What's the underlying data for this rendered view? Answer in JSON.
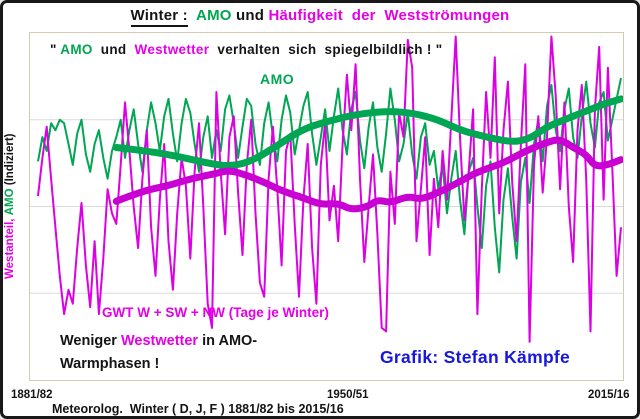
{
  "palette": {
    "black": "#141414",
    "green": "#00a651",
    "magenta": "#e500e5",
    "blue": "#1717dd",
    "line_green": "#00a651",
    "line_magenta_thin": "#dc00e4",
    "line_magenta_thick": "#c800d2",
    "grid": "#dadada",
    "box_border": "#d4cbb0"
  },
  "title": {
    "segments": [
      {
        "t": "Winter :",
        "c": "black",
        "u": true
      },
      {
        "t": "  ",
        "c": "black"
      },
      {
        "t": "AMO",
        "c": "green"
      },
      {
        "t": " und ",
        "c": "black"
      },
      {
        "t": "Häufigkeit  der  Westströmungen",
        "c": "magenta"
      }
    ]
  },
  "quote": {
    "segments": [
      {
        "t": "\" ",
        "c": "black"
      },
      {
        "t": "AMO",
        "c": "green"
      },
      {
        "t": "  und  ",
        "c": "black"
      },
      {
        "t": "Westwetter",
        "c": "magenta"
      },
      {
        "t": "  verhalten  sich  spiegelbildlich ! \"",
        "c": "black"
      }
    ]
  },
  "labels": {
    "amo_curve": "AMO",
    "gwt_curve": "GWT W + SW + NW (Tage je Winter)",
    "note_line1_segments": [
      {
        "t": "Weniger ",
        "c": "black"
      },
      {
        "t": "Westwetter",
        "c": "magenta"
      },
      {
        "t": " in AMO-",
        "c": "black"
      }
    ],
    "note_line2": "Warmphasen !",
    "credit": "Grafik: Stefan Kämpfe",
    "y_axis_segments": [
      {
        "t": "Westanteil, ",
        "c": "magenta"
      },
      {
        "t": "AMO",
        "c": "green"
      },
      {
        "t": " (Indiziert)",
        "c": "black"
      }
    ]
  },
  "x_ticks": [
    "1881/82",
    "1950/51",
    "2015/16"
  ],
  "caption": "Meteorolog.  Winter ( D, J, F ) 1881/82 bis 2015/16",
  "chart_data": {
    "type": "line",
    "title": "Winter : AMO und Häufigkeit der Westströmungen",
    "xlabel": "Winter 1881/82 bis 2015/16",
    "ylabel": "Westanteil, AMO (Indiziert)",
    "x_axis": {
      "start_label": "1881/82",
      "end_label": "2015/16",
      "tick_labels": [
        "1881/82",
        "1950/51",
        "2015/16"
      ],
      "n_points": 135
    },
    "y_axis": {
      "ylim": [
        0,
        100
      ],
      "gridlines": [
        25,
        50,
        75
      ],
      "tick_labels_visible": false,
      "note": "indexed scale, no numeric ticks shown"
    },
    "legend_position": "inline-text-labels",
    "series": [
      {
        "name": "AMO (jährlich, indiziert)",
        "color": "#00a651",
        "width": 2,
        "style": "thin",
        "values": [
          63,
          70,
          66,
          74,
          72,
          75,
          74,
          68,
          62,
          71,
          75,
          65,
          60,
          68,
          72,
          64,
          58,
          66,
          70,
          75,
          64,
          72,
          78,
          68,
          60,
          72,
          80,
          74,
          66,
          76,
          81,
          71,
          63,
          74,
          81,
          77,
          68,
          60,
          70,
          76,
          64,
          72,
          66,
          78,
          82,
          74,
          64,
          73,
          81,
          79,
          68,
          62,
          74,
          80,
          70,
          63,
          75,
          82,
          77,
          65,
          72,
          79,
          83,
          71,
          62,
          70,
          78,
          66,
          76,
          84,
          72,
          65,
          78,
          83,
          69,
          61,
          73,
          80,
          67,
          60,
          71,
          84,
          75,
          63,
          68,
          77,
          65,
          58,
          70,
          74,
          62,
          66,
          55,
          62,
          48,
          58,
          66,
          52,
          42,
          60,
          64,
          50,
          38,
          56,
          63,
          44,
          31,
          52,
          61,
          47,
          35,
          57,
          64,
          51,
          68,
          75,
          63,
          79,
          85,
          72,
          66,
          78,
          84,
          70,
          64,
          76,
          86,
          74,
          67,
          80,
          83,
          69,
          75,
          81,
          87
        ]
      },
      {
        "name": "GWT W + SW + NW, Tage je Winter (jährlich, indiziert)",
        "color": "#dc00e4",
        "width": 2,
        "style": "thin",
        "values": [
          53,
          64,
          73,
          58,
          44,
          30,
          19,
          26,
          22,
          38,
          51,
          33,
          21,
          40,
          19,
          35,
          55,
          48,
          45,
          62,
          80,
          66,
          50,
          38,
          58,
          72,
          44,
          30,
          52,
          68,
          40,
          26,
          48,
          64,
          56,
          35,
          60,
          74,
          50,
          22,
          15,
          83,
          60,
          42,
          70,
          76,
          54,
          36,
          62,
          75,
          48,
          28,
          24,
          58,
          73,
          55,
          33,
          66,
          71,
          45,
          24,
          52,
          68,
          38,
          22,
          62,
          74,
          46,
          56,
          40,
          68,
          88,
          72,
          91,
          58,
          34,
          50,
          65,
          42,
          15,
          14,
          60,
          45,
          77,
          70,
          98,
          90,
          40,
          55,
          70,
          36,
          58,
          44,
          66,
          52,
          75,
          99,
          70,
          46,
          60,
          78,
          19,
          55,
          83,
          64,
          93,
          48,
          72,
          86,
          57,
          40,
          68,
          91,
          11,
          62,
          76,
          54,
          70,
          99,
          82,
          55,
          80,
          50,
          34,
          72,
          85,
          58,
          14,
          78,
          96,
          52,
          90,
          61,
          30,
          44
        ]
      },
      {
        "name": "AMO (geglättet)",
        "color": "#00a651",
        "width": 7,
        "style": "smooth",
        "points": [
          [
            18,
            67
          ],
          [
            25,
            66
          ],
          [
            32,
            64.5
          ],
          [
            39,
            62.5
          ],
          [
            44,
            61.5
          ],
          [
            49,
            63
          ],
          [
            55,
            67.5
          ],
          [
            61,
            72.5
          ],
          [
            68,
            75
          ],
          [
            73,
            76.5
          ],
          [
            80,
            77.5
          ],
          [
            86,
            77
          ],
          [
            92,
            75
          ],
          [
            97,
            72
          ],
          [
            103,
            70
          ],
          [
            109,
            68.5
          ],
          [
            113,
            69.5
          ],
          [
            117,
            73
          ],
          [
            121,
            75
          ],
          [
            126,
            77.5
          ],
          [
            130,
            79.5
          ],
          [
            134,
            81
          ]
        ]
      },
      {
        "name": "GWT W + SW + NW (geglättet)",
        "color": "#c800d2",
        "width": 7,
        "style": "smooth",
        "points": [
          [
            18,
            51.5
          ],
          [
            24,
            54.5
          ],
          [
            30,
            56
          ],
          [
            35,
            58
          ],
          [
            41,
            59.5
          ],
          [
            44,
            60.5
          ],
          [
            48,
            59
          ],
          [
            52,
            57
          ],
          [
            56,
            54.5
          ],
          [
            61,
            52.5
          ],
          [
            65,
            50.5
          ],
          [
            69,
            51
          ],
          [
            72,
            49
          ],
          [
            76,
            50
          ],
          [
            78,
            52
          ],
          [
            81,
            51
          ],
          [
            85,
            53
          ],
          [
            88,
            52
          ],
          [
            92,
            54
          ],
          [
            96,
            56.5
          ],
          [
            101,
            60
          ],
          [
            107,
            62.5
          ],
          [
            112,
            66
          ],
          [
            117,
            68.5
          ],
          [
            120,
            69.5
          ],
          [
            123,
            67
          ],
          [
            126,
            65
          ],
          [
            128,
            61.5
          ],
          [
            131,
            62
          ],
          [
            134,
            63.5
          ]
        ]
      }
    ]
  }
}
